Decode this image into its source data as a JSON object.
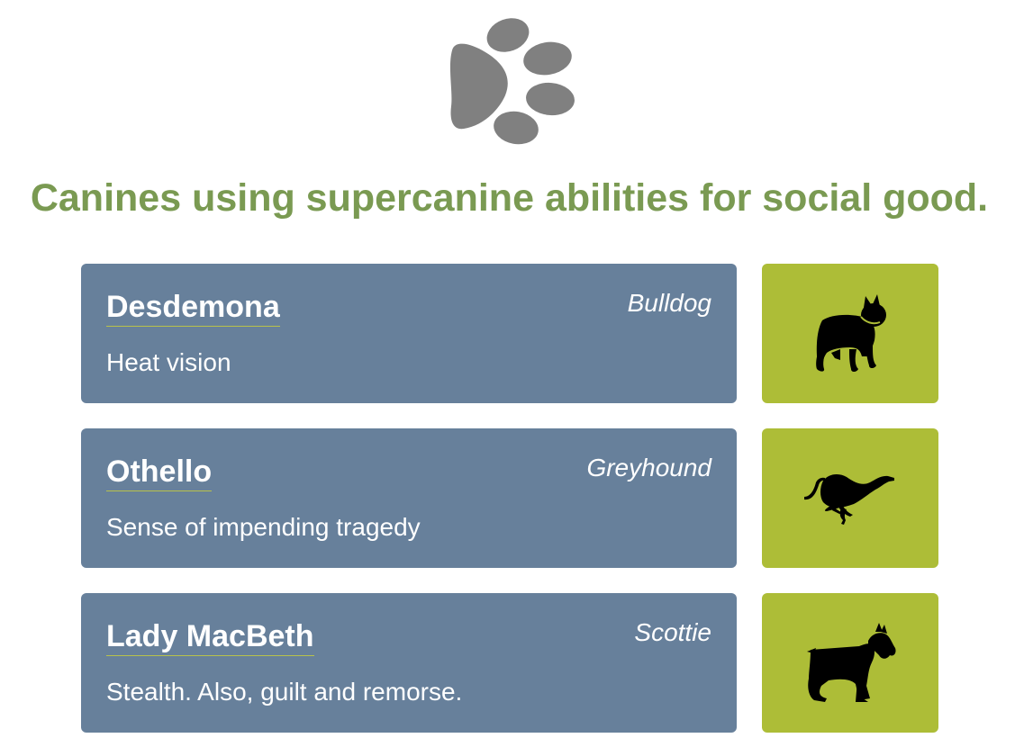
{
  "header": {
    "logo_icon": "paw-print-icon",
    "headline": "Canines using supercanine abilities for social good."
  },
  "colors": {
    "headline": "#7a9a52",
    "card_background": "#67809b",
    "tile_background": "#adbd37",
    "logo": "#808080",
    "name_underline": "#b8c24a"
  },
  "dogs": [
    {
      "name": "Desdemona",
      "breed": "Bulldog",
      "ability": "Heat vision",
      "icon": "bulldog-silhouette-icon"
    },
    {
      "name": "Othello",
      "breed": "Greyhound",
      "ability": "Sense of impending tragedy",
      "icon": "greyhound-running-icon"
    },
    {
      "name": "Lady MacBeth",
      "breed": "Scottie",
      "ability": "Stealth. Also, guilt and remorse.",
      "icon": "scottie-dog-icon"
    }
  ]
}
